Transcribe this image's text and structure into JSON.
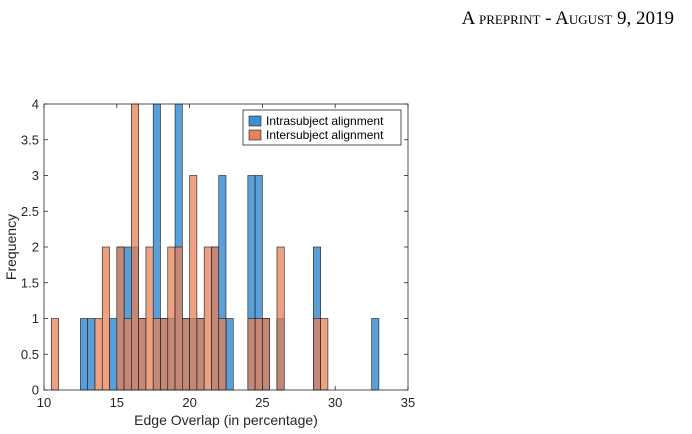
{
  "header": {
    "text": "A preprint - August 9, 2019"
  },
  "chart_data": {
    "type": "bar",
    "xlabel": "Edge Overlap (in percentage)",
    "ylabel": "Frequency",
    "xlim": [
      10,
      35
    ],
    "ylim": [
      0,
      4
    ],
    "xticks": [
      "10",
      "15",
      "20",
      "25",
      "30",
      "35"
    ],
    "yticks": [
      "0",
      "0.5",
      "1",
      "1.5",
      "2",
      "2.5",
      "3",
      "3.5",
      "4"
    ],
    "legend_position": "top-right",
    "colors": {
      "intra": "#3d8fd1",
      "inter": "#e8805a"
    },
    "series": [
      {
        "name": "Intrasubject alignment",
        "bins": [
          [
            12.75,
            1
          ],
          [
            13.25,
            1
          ],
          [
            14.75,
            1
          ],
          [
            15.25,
            2
          ],
          [
            15.75,
            2
          ],
          [
            16.25,
            2
          ],
          [
            16.75,
            1
          ],
          [
            17.75,
            4
          ],
          [
            18.25,
            1
          ],
          [
            18.75,
            1
          ],
          [
            19.25,
            4
          ],
          [
            19.75,
            1
          ],
          [
            20.25,
            1
          ],
          [
            20.75,
            1
          ],
          [
            21.75,
            2
          ],
          [
            22.25,
            3
          ],
          [
            22.75,
            1
          ],
          [
            24.25,
            3
          ],
          [
            24.75,
            3
          ],
          [
            25.25,
            1
          ],
          [
            26.25,
            1
          ],
          [
            28.75,
            2
          ],
          [
            32.75,
            1
          ]
        ]
      },
      {
        "name": "Intersubject alignment",
        "bins": [
          [
            10.75,
            1
          ],
          [
            13.75,
            1
          ],
          [
            14.25,
            2
          ],
          [
            15.25,
            2
          ],
          [
            15.75,
            1
          ],
          [
            16.25,
            4
          ],
          [
            16.75,
            1
          ],
          [
            17.25,
            2
          ],
          [
            17.75,
            1
          ],
          [
            18.25,
            1
          ],
          [
            18.75,
            2
          ],
          [
            19.25,
            2
          ],
          [
            19.75,
            1
          ],
          [
            20.25,
            3
          ],
          [
            20.75,
            1
          ],
          [
            21.25,
            2
          ],
          [
            21.75,
            2
          ],
          [
            22.25,
            1
          ],
          [
            24.25,
            1
          ],
          [
            24.75,
            1
          ],
          [
            25.25,
            1
          ],
          [
            26.25,
            2
          ],
          [
            28.75,
            1
          ],
          [
            29.25,
            1
          ]
        ]
      }
    ]
  }
}
